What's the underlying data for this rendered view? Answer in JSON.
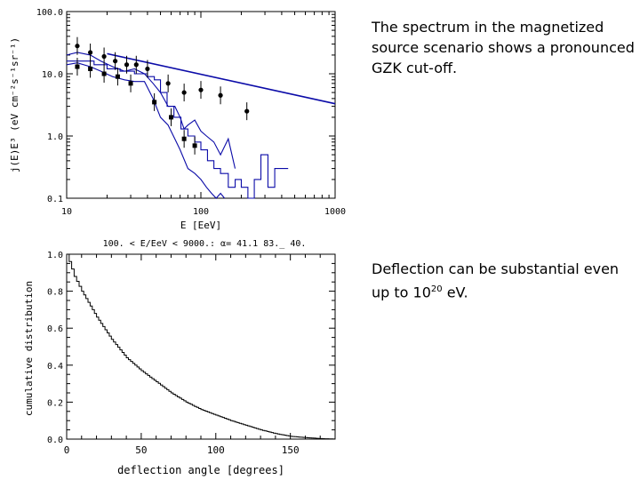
{
  "captions": {
    "spectrum": "The spectrum in the magnetized source scenario shows a pronounced GZK cut-off.",
    "deflection_prefix": "Deflection can be substantial even up to 10",
    "deflection_exponent": "20",
    "deflection_suffix": " eV."
  },
  "colors": {
    "line": "#0b0ba8",
    "axis": "#000000",
    "background": "#ffffff"
  },
  "chart_data": [
    {
      "type": "line",
      "title": "",
      "xlabel": "E [EeV]",
      "ylabel": "j(E)E³ (eV cm⁻²s⁻¹sr⁻¹)",
      "xscale": "log",
      "yscale": "log",
      "xlim": [
        10,
        1000
      ],
      "ylim": [
        0.1,
        100
      ],
      "x_ticks": [
        "10",
        "100",
        "1000"
      ],
      "y_ticks": [
        "0.1",
        "1.0",
        "10.0",
        "100.0"
      ],
      "series": [
        {
          "name": "power-law fit",
          "style": "line",
          "x": [
            20,
            1000
          ],
          "y": [
            21,
            3.3
          ]
        },
        {
          "name": "upper band",
          "style": "line",
          "x": [
            10,
            12,
            15,
            18,
            22,
            27,
            32,
            38,
            44,
            50,
            57,
            64,
            70,
            75,
            80,
            90,
            100,
            110,
            125,
            140,
            160,
            180
          ],
          "y": [
            20,
            22,
            20,
            16,
            13,
            11,
            12,
            10,
            7,
            5,
            3,
            3,
            2,
            1.3,
            1.5,
            1.8,
            1.2,
            1.0,
            0.8,
            0.5,
            0.9,
            0.3
          ]
        },
        {
          "name": "lower band",
          "style": "line",
          "x": [
            10,
            12,
            15,
            18,
            22,
            27,
            32,
            38,
            44,
            50,
            57,
            64,
            70,
            80,
            90,
            100,
            110,
            120,
            130,
            140,
            150
          ],
          "y": [
            14,
            15,
            13,
            11,
            9,
            8,
            7.5,
            7.5,
            4,
            2,
            1.5,
            0.9,
            0.6,
            0.3,
            0.25,
            0.2,
            0.15,
            0.12,
            0.1,
            0.12,
            0.1
          ]
        },
        {
          "name": "middle step",
          "style": "step",
          "x": [
            10,
            16,
            20,
            25,
            32,
            40,
            45,
            50,
            56,
            63,
            71,
            80,
            90,
            100,
            112,
            125,
            140,
            160,
            180,
            200,
            224,
            250,
            280,
            316,
            355,
            400,
            447
          ],
          "y": [
            16,
            14,
            12,
            11,
            10,
            9,
            8,
            5,
            3,
            2,
            1.3,
            1.0,
            0.8,
            0.6,
            0.4,
            0.3,
            0.25,
            0.15,
            0.2,
            0.15,
            0.1,
            0.2,
            0.5,
            0.15,
            0.3,
            0.3,
            0.3
          ]
        },
        {
          "name": "data (circles)",
          "style": "points",
          "marker": "circle",
          "x": [
            12,
            15,
            19,
            23,
            28,
            33,
            40,
            57,
            75,
            100,
            140,
            220
          ],
          "y": [
            28,
            22,
            19,
            16,
            14,
            14,
            12,
            7,
            5,
            5.5,
            4.5,
            2.5
          ]
        },
        {
          "name": "data (squares)",
          "style": "points",
          "marker": "square",
          "x": [
            12,
            15,
            19,
            24,
            30,
            45,
            60,
            75,
            90
          ],
          "y": [
            13,
            12,
            10,
            9,
            7,
            3.5,
            2,
            0.9,
            0.7
          ]
        }
      ]
    },
    {
      "type": "line",
      "title": "100. < E/EeV < 9000.: α= 41.1 83._ 40.",
      "xlabel": "deflection angle [degrees]",
      "ylabel": "cumulative distribution",
      "xlim": [
        0,
        180
      ],
      "ylim": [
        0,
        1
      ],
      "x_ticks": [
        "0",
        "50",
        "100",
        "150"
      ],
      "y_ticks": [
        "0.0",
        "0.2",
        "0.4",
        "0.6",
        "0.8",
        "1.0"
      ],
      "series": [
        {
          "name": "cumulative distribution",
          "style": "step",
          "x": [
            0,
            5,
            10,
            20,
            30,
            40,
            50,
            60,
            70,
            80,
            90,
            100,
            110,
            120,
            130,
            140,
            150,
            160,
            170,
            180
          ],
          "y": [
            1.0,
            0.88,
            0.8,
            0.66,
            0.54,
            0.44,
            0.37,
            0.31,
            0.25,
            0.2,
            0.16,
            0.13,
            0.1,
            0.075,
            0.05,
            0.03,
            0.015,
            0.008,
            0.003,
            0.0
          ]
        }
      ]
    }
  ]
}
